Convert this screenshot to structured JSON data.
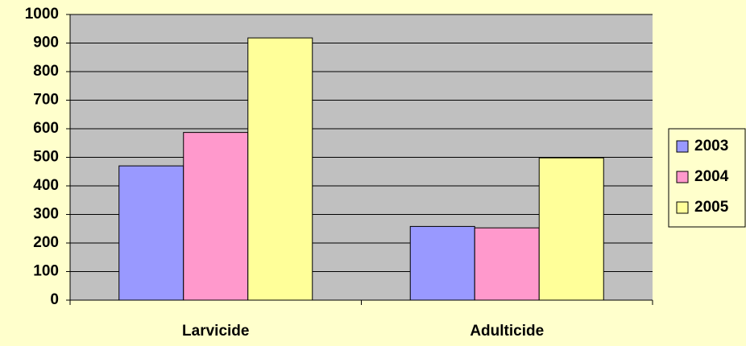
{
  "chart_data": {
    "type": "bar",
    "categories": [
      "Larvicide",
      "Adulticide"
    ],
    "series": [
      {
        "name": "2003",
        "color": "#9999ff",
        "values": [
          470,
          258
        ]
      },
      {
        "name": "2004",
        "color": "#ff99cc",
        "values": [
          587,
          253
        ]
      },
      {
        "name": "2005",
        "color": "#ffff99",
        "values": [
          918,
          498
        ]
      }
    ],
    "ylim": [
      0,
      1000
    ],
    "yticks": [
      0,
      100,
      200,
      300,
      400,
      500,
      600,
      700,
      800,
      900,
      1000
    ],
    "grid": true,
    "legend": "right"
  }
}
